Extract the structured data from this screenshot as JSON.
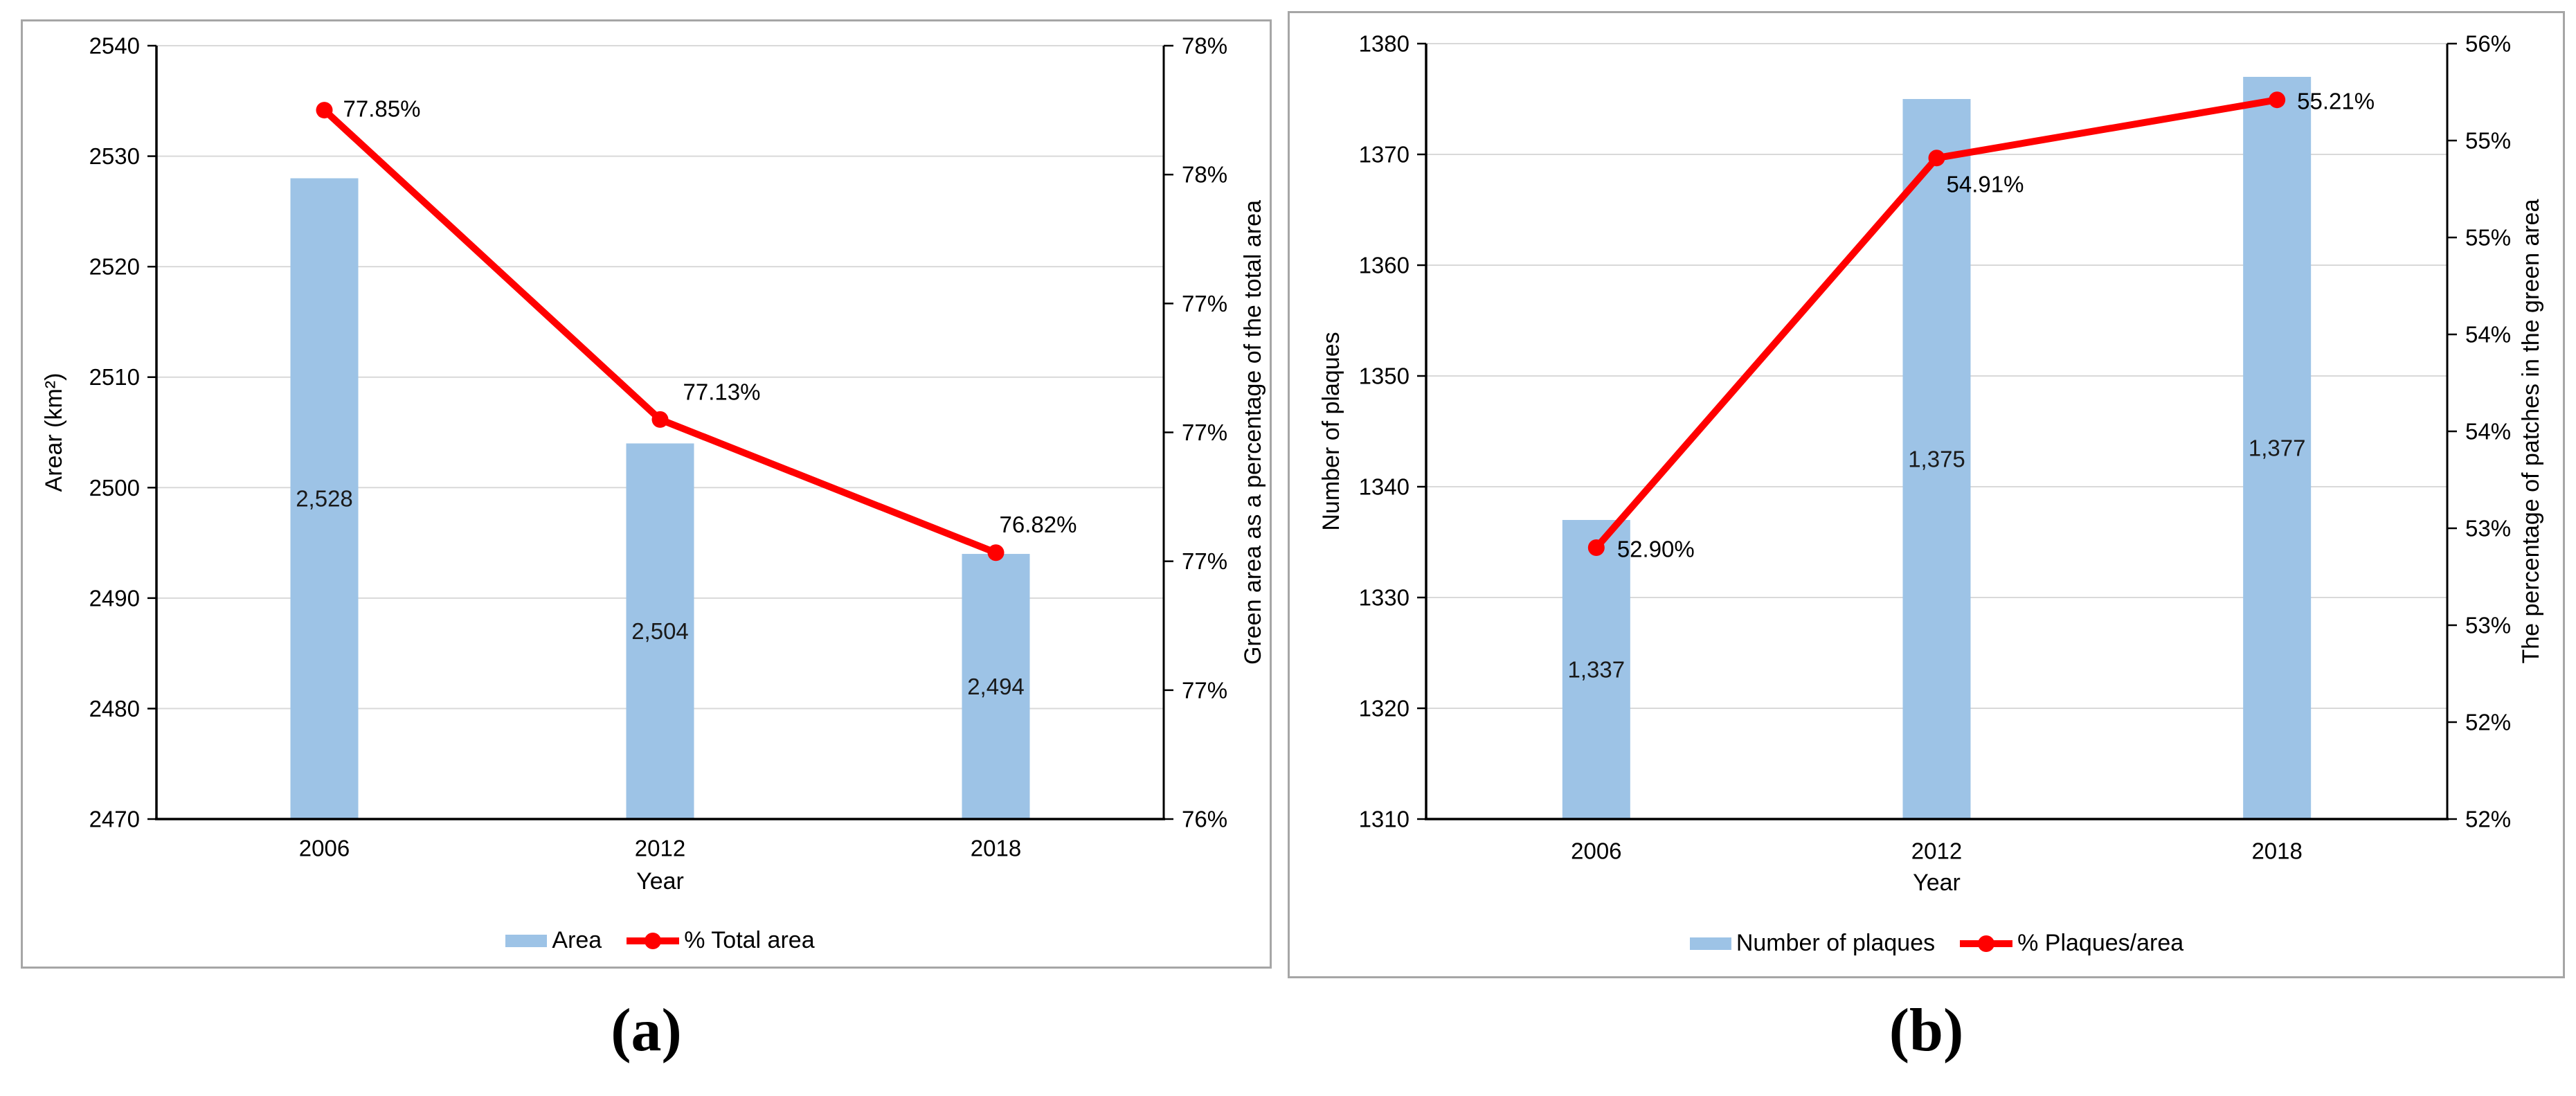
{
  "page": {
    "background": "#FFFFFF",
    "panel_border_color": "#A6A6A6"
  },
  "panels": [
    {
      "caption": "(a)"
    },
    {
      "caption": "(b)"
    }
  ],
  "chart_data": [
    {
      "type": "bar+line",
      "categories": [
        "2006",
        "2012",
        "2018"
      ],
      "xlabel": "Year",
      "bar_series": {
        "name": "Area",
        "values": [
          2528,
          2504,
          2494
        ],
        "data_labels": [
          "2,528",
          "2,504",
          "2,494"
        ],
        "color": "#9DC3E6",
        "axis": "left"
      },
      "line_series": {
        "name": "% Total area",
        "values": [
          77.85,
          77.13,
          76.82
        ],
        "data_labels": [
          "77.85%",
          "77.13%",
          "76.82%"
        ],
        "color": "#FF0000",
        "axis": "right"
      },
      "left_axis": {
        "title": "Arear (km²)",
        "min": 2470,
        "max": 2540,
        "major": 10,
        "tick_labels": [
          "2540",
          "2530",
          "2520",
          "2510",
          "2500",
          "2490",
          "2480",
          "2470"
        ]
      },
      "right_axis": {
        "title": "Green area as a percentage of the total area",
        "min": 76.2,
        "max": 78.0,
        "major": 0.3,
        "tick_labels": [
          "78%",
          "78%",
          "77%",
          "77%",
          "77%",
          "77%",
          "76%"
        ]
      },
      "legend": [
        "Area",
        "% Total area"
      ],
      "grid": true,
      "legend_position": "bottom",
      "gridline_color": "#D9D9D9",
      "axis_color": "#000000"
    },
    {
      "type": "bar+line",
      "categories": [
        "2006",
        "2012",
        "2018"
      ],
      "xlabel": "Year",
      "bar_series": {
        "name": "Number of plaques",
        "values": [
          1337,
          1375,
          1377
        ],
        "data_labels": [
          "1,337",
          "1,375",
          "1,377"
        ],
        "color": "#9DC3E6",
        "axis": "left"
      },
      "line_series": {
        "name": "% Plaques/area",
        "values": [
          52.9,
          54.91,
          55.21
        ],
        "data_labels": [
          "52.90%",
          "54.91%",
          "55.21%"
        ],
        "color": "#FF0000",
        "axis": "right"
      },
      "left_axis": {
        "title": "Number of plaques",
        "min": 1310,
        "max": 1380,
        "major": 10,
        "tick_labels": [
          "1380",
          "1370",
          "1360",
          "1350",
          "1340",
          "1330",
          "1320",
          "1310"
        ]
      },
      "right_axis": {
        "title": "The percentage of patches in the green area",
        "min": 51.5,
        "max": 55.5,
        "major": 0.5,
        "tick_labels": [
          "56%",
          "55%",
          "55%",
          "54%",
          "54%",
          "53%",
          "53%",
          "52%",
          "52%"
        ]
      },
      "legend": [
        "Number of plaques",
        "% Plaques/area"
      ],
      "grid": true,
      "legend_position": "bottom",
      "gridline_color": "#D9D9D9",
      "axis_color": "#000000"
    }
  ]
}
